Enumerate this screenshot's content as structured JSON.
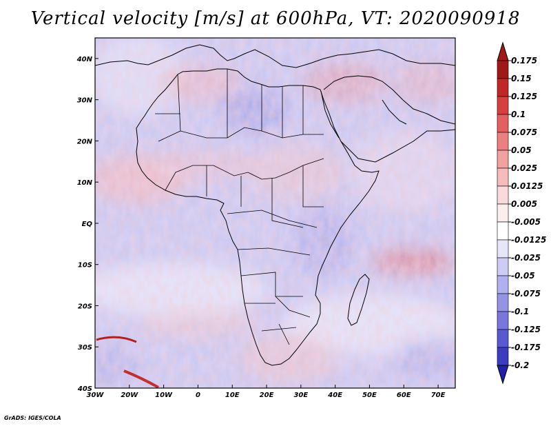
{
  "title": "Vertical velocity [m/s] at 600hPa, VT: 2020090918",
  "credit": "GrADS: IGES/COLA",
  "map": {
    "lon_range": [
      -30,
      75
    ],
    "lat_range": [
      -40,
      45
    ],
    "lon_ticks": [
      {
        "value": -30,
        "label": "30W"
      },
      {
        "value": -20,
        "label": "20W"
      },
      {
        "value": -10,
        "label": "10W"
      },
      {
        "value": 0,
        "label": "0"
      },
      {
        "value": 10,
        "label": "10E"
      },
      {
        "value": 20,
        "label": "20E"
      },
      {
        "value": 30,
        "label": "30E"
      },
      {
        "value": 40,
        "label": "40E"
      },
      {
        "value": 50,
        "label": "50E"
      },
      {
        "value": 60,
        "label": "60E"
      },
      {
        "value": 70,
        "label": "70E"
      }
    ],
    "lat_ticks": [
      {
        "value": 40,
        "label": "40N"
      },
      {
        "value": 30,
        "label": "30N"
      },
      {
        "value": 20,
        "label": "20N"
      },
      {
        "value": 10,
        "label": "10N"
      },
      {
        "value": 0,
        "label": "EQ"
      },
      {
        "value": -10,
        "label": "10S"
      },
      {
        "value": -20,
        "label": "20S"
      },
      {
        "value": -30,
        "label": "30S"
      },
      {
        "value": -40,
        "label": "40S"
      }
    ]
  },
  "colorbar": {
    "levels": [
      {
        "label": "0.175",
        "color": "#a01818"
      },
      {
        "label": "0.15",
        "color": "#c02828"
      },
      {
        "label": "0.125",
        "color": "#d84040"
      },
      {
        "label": "0.1",
        "color": "#e46060"
      },
      {
        "label": "0.075",
        "color": "#ec8080"
      },
      {
        "label": "0.05",
        "color": "#f2a0a0"
      },
      {
        "label": "0.025",
        "color": "#f6bcbc"
      },
      {
        "label": "0.0125",
        "color": "#fadada"
      },
      {
        "label": "0.005",
        "color": "#fdeeee"
      },
      {
        "label": "-0.005",
        "color": "#ffffff"
      },
      {
        "label": "-0.0125",
        "color": "#e6e6fa"
      },
      {
        "label": "-0.025",
        "color": "#ccccf4"
      },
      {
        "label": "-0.05",
        "color": "#b0b0ee"
      },
      {
        "label": "-0.075",
        "color": "#9494e6"
      },
      {
        "label": "-0.1",
        "color": "#7878dc"
      },
      {
        "label": "-0.125",
        "color": "#5a5ad0"
      },
      {
        "label": "-0.175",
        "color": "#3c3cc0"
      },
      {
        "label": "-0.2",
        "color": "#2020a8"
      }
    ],
    "top_arrow_color": "#a01818",
    "bottom_arrow_color": "#2020a8"
  }
}
